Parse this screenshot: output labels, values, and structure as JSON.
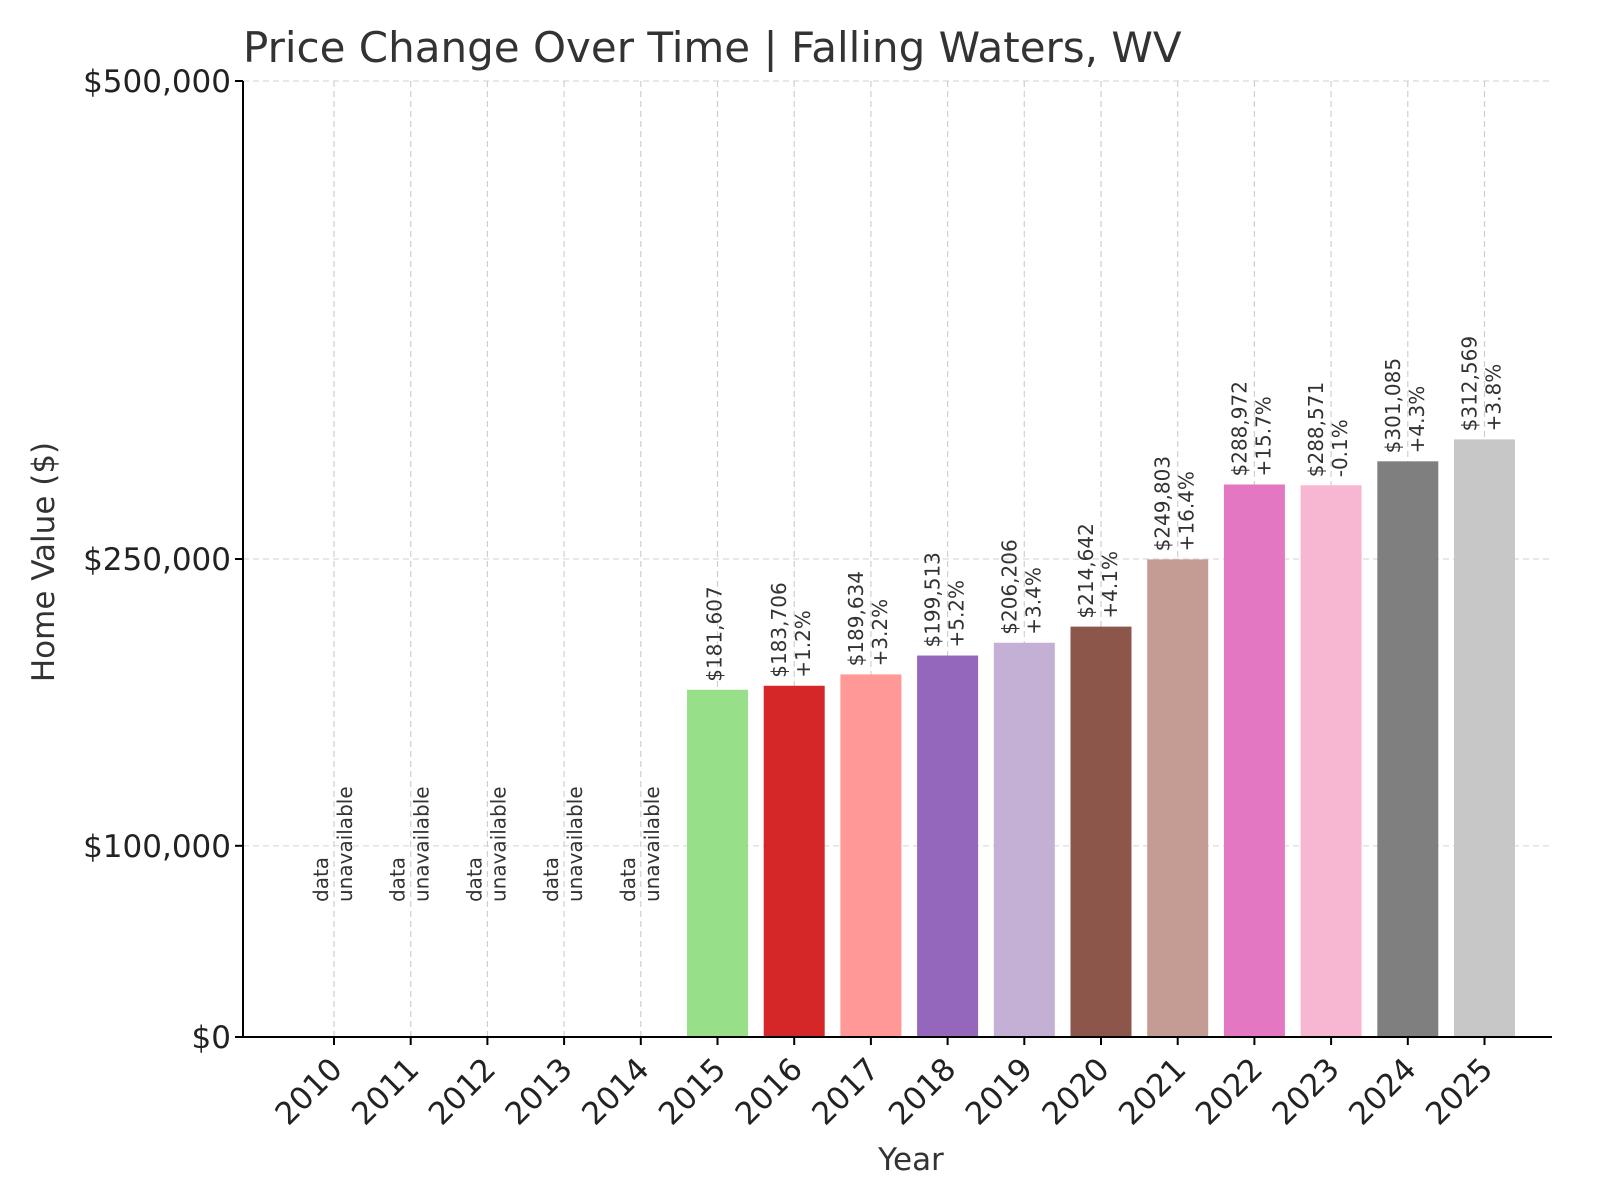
{
  "chart_data": {
    "type": "bar",
    "title": "Price Change Over Time | Falling Waters, WV",
    "xlabel": "Year",
    "ylabel": "Home Value ($)",
    "ylim": [
      0,
      500000
    ],
    "y_ticks": [
      {
        "value": 0,
        "label": "$0"
      },
      {
        "value": 100000,
        "label": "$100,000"
      },
      {
        "value": 250000,
        "label": "$250,000"
      },
      {
        "value": 500000,
        "label": "$500,000"
      }
    ],
    "grid": true,
    "categories": [
      "2010",
      "2011",
      "2012",
      "2013",
      "2014",
      "2015",
      "2016",
      "2017",
      "2018",
      "2019",
      "2020",
      "2021",
      "2022",
      "2023",
      "2024",
      "2025"
    ],
    "values": [
      null,
      null,
      null,
      null,
      null,
      181607,
      183706,
      189634,
      199513,
      206206,
      214642,
      249803,
      288972,
      288571,
      301085,
      312569
    ],
    "value_labels": [
      "",
      "",
      "",
      "",
      "",
      "$181,607",
      "$183,706",
      "$189,634",
      "$199,513",
      "$206,206",
      "$214,642",
      "$249,803",
      "$288,972",
      "$288,571",
      "$301,085",
      "$312,569"
    ],
    "change_labels": [
      "",
      "",
      "",
      "",
      "",
      "",
      "+1.2%",
      "+3.2%",
      "+5.2%",
      "+3.4%",
      "+4.1%",
      "+16.4%",
      "+15.7%",
      "-0.1%",
      "+4.3%",
      "+3.8%"
    ],
    "unavailable_label": [
      "data",
      "unavailable"
    ],
    "colors": [
      "#1f77b4",
      "#aec7e8",
      "#ff7f0e",
      "#ffbb78",
      "#2ca02c",
      "#98df8a",
      "#d62728",
      "#ff9896",
      "#9467bd",
      "#c5b0d5",
      "#8c564b",
      "#c49c94",
      "#e377c2",
      "#f7b6d2",
      "#7f7f7f",
      "#c7c7c7"
    ]
  }
}
